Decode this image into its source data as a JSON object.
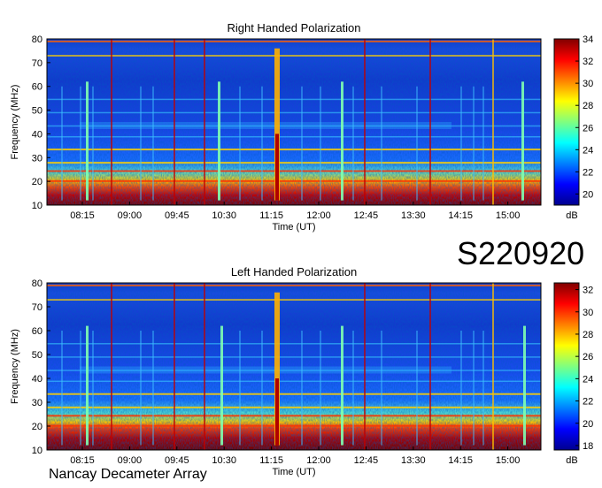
{
  "chart_data": [
    {
      "type": "heatmap",
      "title": "Right Handed Polarization",
      "xlabel": "Time (UT)",
      "ylabel": "Frequency (MHz)",
      "x_ticks": [
        "08:15",
        "09:00",
        "09:45",
        "10:30",
        "11:15",
        "12:00",
        "12:45",
        "13:30",
        "14:15",
        "15:00"
      ],
      "y_ticks": [
        10,
        20,
        30,
        40,
        50,
        60,
        70,
        80
      ],
      "ylim": [
        10,
        80
      ],
      "colorbar": {
        "label": "dB",
        "range": [
          19,
          34
        ],
        "ticks": [
          20,
          22,
          24,
          26,
          28,
          30,
          32,
          34
        ]
      }
    },
    {
      "type": "heatmap",
      "title": "Left Handed Polarization",
      "xlabel": "Time (UT)",
      "ylabel": "Frequency (MHz)",
      "x_ticks": [
        "08:15",
        "09:00",
        "09:45",
        "10:30",
        "11:15",
        "12:00",
        "12:45",
        "13:30",
        "14:15",
        "15:00"
      ],
      "y_ticks": [
        10,
        20,
        30,
        40,
        50,
        60,
        70,
        80
      ],
      "ylim": [
        10,
        80
      ],
      "colorbar": {
        "label": "dB",
        "range": [
          17.6,
          32.6
        ],
        "ticks": [
          18,
          20,
          22,
          24,
          26,
          28,
          30,
          32
        ]
      }
    }
  ],
  "event_code": "S220920",
  "observatory": "Nancay Decameter Array"
}
